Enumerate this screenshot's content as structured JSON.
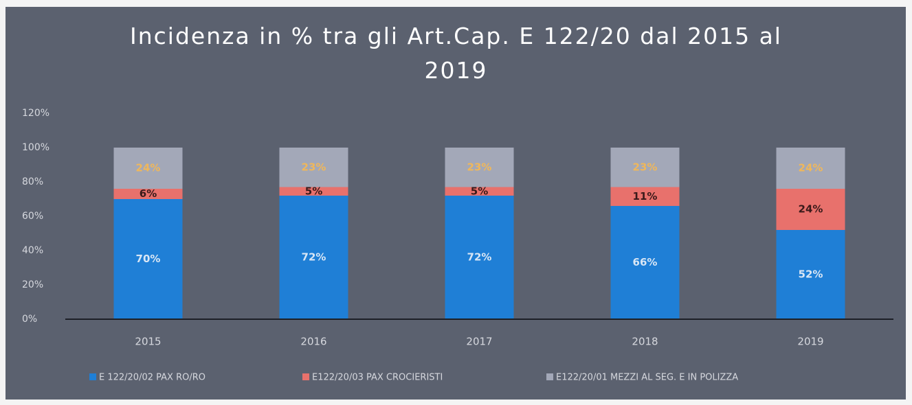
{
  "chart_data": {
    "type": "stacked_bar",
    "title": "Incidenza in % tra gli Art.Cap. E 122/20 dal 2015 al 2019",
    "categories": [
      "2015",
      "2016",
      "2017",
      "2018",
      "2019"
    ],
    "series": [
      {
        "name": "E 122/20/02 PAX RO/RO",
        "color": "#1f7fd6",
        "label_color": "#d8e6f5",
        "values": [
          70,
          72,
          72,
          66,
          52
        ],
        "value_labels": [
          "70%",
          "72%",
          "72%",
          "66%",
          "52%"
        ]
      },
      {
        "name": "E122/20/03 PAX CROCIERISTI",
        "color": "#e8716c",
        "label_color": "#3a1a1a",
        "values": [
          6,
          5,
          5,
          11,
          24
        ],
        "value_labels": [
          "6%",
          "5%",
          "5%",
          "11%",
          "24%"
        ]
      },
      {
        "name": "E122/20/01 MEZZI AL SEG. E IN POLIZZA",
        "color": "#a3a8b8",
        "label_color": "#f0b75a",
        "values": [
          24,
          23,
          23,
          23,
          24
        ],
        "value_labels": [
          "24%",
          "23%",
          "23%",
          "23%",
          "24%"
        ]
      }
    ],
    "ylim": [
      0,
      120
    ],
    "yticks": [
      {
        "value": 0,
        "label": "0%"
      },
      {
        "value": 20,
        "label": "20%"
      },
      {
        "value": 40,
        "label": "40%"
      },
      {
        "value": 60,
        "label": "60%"
      },
      {
        "value": 80,
        "label": "80%"
      },
      {
        "value": 100,
        "label": "100%"
      },
      {
        "value": 120,
        "label": "120%"
      }
    ],
    "legend": "bottom"
  }
}
